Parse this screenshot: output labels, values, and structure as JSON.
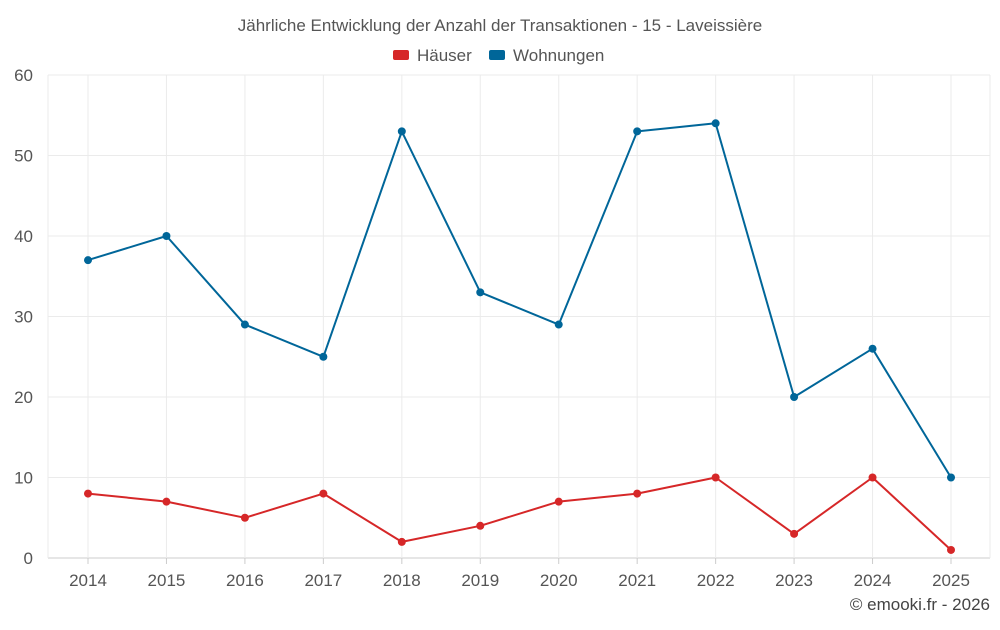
{
  "chart_data": {
    "type": "line",
    "title": "Jährliche Entwicklung der Anzahl der Transaktionen - 15 - Laveissière",
    "xlabel": "",
    "ylabel": "",
    "categories": [
      "2014",
      "2015",
      "2016",
      "2017",
      "2018",
      "2019",
      "2020",
      "2021",
      "2022",
      "2023",
      "2024",
      "2025"
    ],
    "ylim": [
      0,
      60
    ],
    "yticks": [
      0,
      10,
      20,
      30,
      40,
      50,
      60
    ],
    "grid": true,
    "legend_position": "top-center",
    "series": [
      {
        "name": "Häuser",
        "color": "#d62728",
        "values": [
          8,
          7,
          5,
          8,
          2,
          4,
          7,
          8,
          10,
          3,
          10,
          1
        ]
      },
      {
        "name": "Wohnungen",
        "color": "#006699",
        "values": [
          37,
          40,
          29,
          25,
          53,
          33,
          29,
          53,
          54,
          20,
          26,
          10
        ]
      }
    ]
  },
  "footer": {
    "copyright": "© emooki.fr - 2026"
  }
}
